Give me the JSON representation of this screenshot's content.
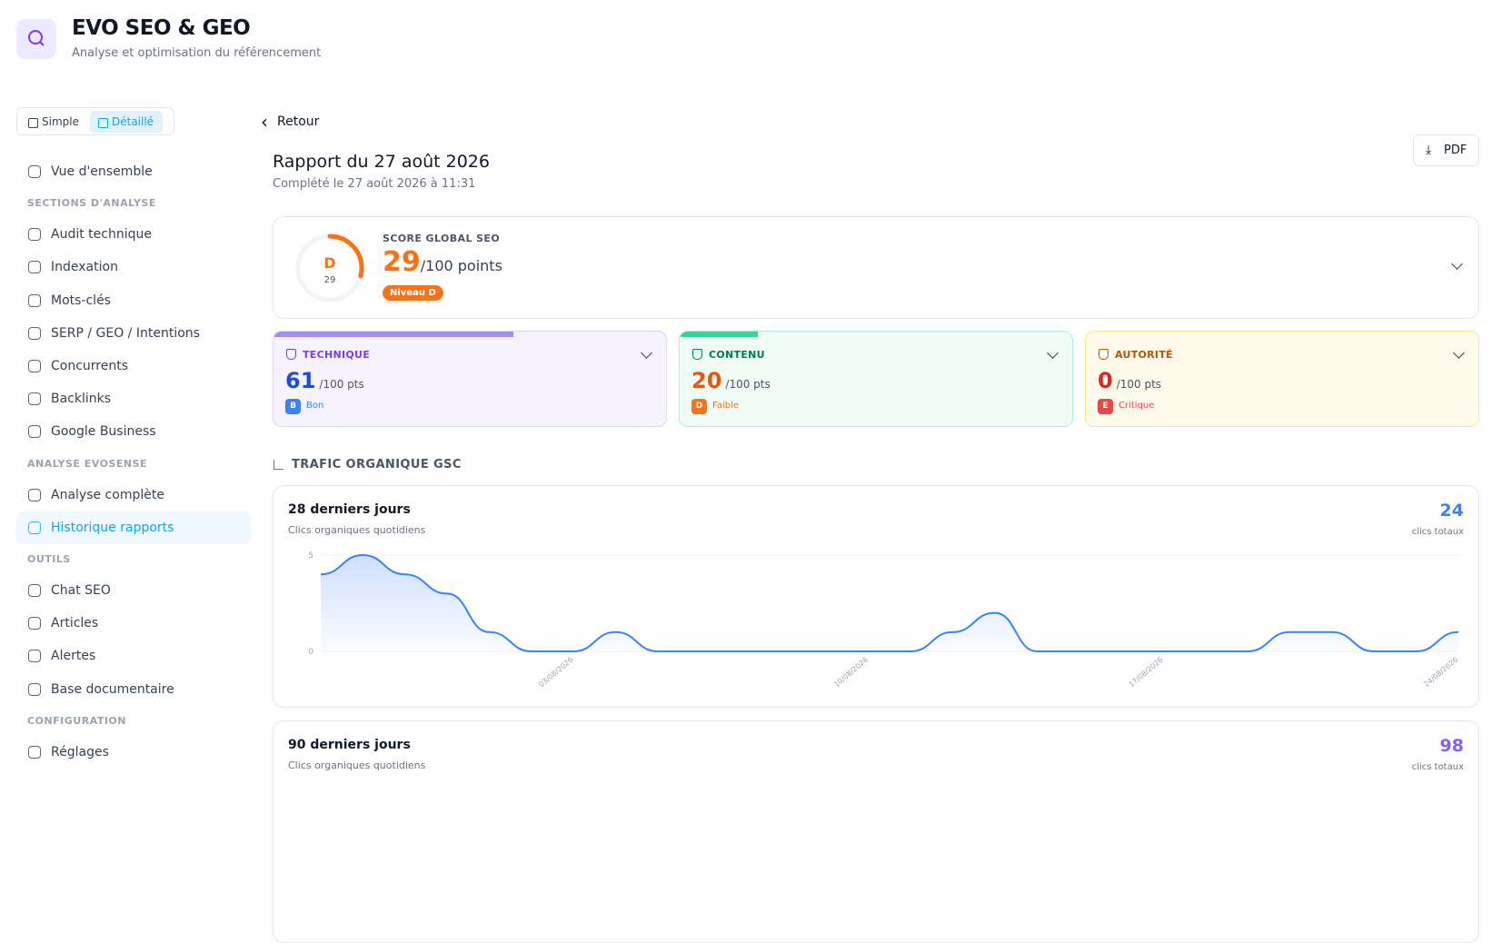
{
  "header": {
    "title": "EVO SEO & GEO",
    "subtitle": "Analyse et optimisation du référencement"
  },
  "view_modes": [
    {
      "label": "Simple"
    },
    {
      "label": "Détaillé",
      "active": true
    }
  ],
  "nav": [
    {
      "items": [
        {
          "label": "Vue d'ensemble"
        }
      ]
    },
    {
      "label": "SECTIONS D'ANALYSE",
      "items": [
        {
          "label": "Audit technique"
        },
        {
          "label": "Indexation"
        },
        {
          "label": "Mots-clés"
        },
        {
          "label": "SERP / GEO / Intentions"
        },
        {
          "label": "Concurrents"
        },
        {
          "label": "Backlinks"
        },
        {
          "label": "Google Business"
        }
      ]
    },
    {
      "label": "ANALYSE EVOSENSE",
      "items": [
        {
          "label": "Analyse complète"
        },
        {
          "label": "Historique rapports",
          "active": true
        }
      ]
    },
    {
      "label": "OUTILS",
      "items": [
        {
          "label": "Chat SEO"
        },
        {
          "label": "Articles"
        },
        {
          "label": "Alertes"
        },
        {
          "label": "Base documentaire"
        }
      ]
    },
    {
      "label": "CONFIGURATION",
      "items": [
        {
          "label": "Réglages"
        }
      ]
    }
  ],
  "report": {
    "back": "Retour",
    "title": "Rapport du 27 août 2026",
    "subtitle": "Complété le 27 août 2026 à 11:31",
    "pdf": "PDF"
  },
  "score": {
    "label": "SCORE GLOBAL SEO",
    "grade": "D",
    "value": 29,
    "suffix": "/100 points",
    "badge": "Niveau D",
    "color": "#f97316"
  },
  "categories": [
    {
      "name": "TECHNIQUE",
      "value": 61,
      "suffix": "/100 pts",
      "grade": "B",
      "status": "Bon",
      "color": "#7c3aed",
      "value_color": "#1d4ed8",
      "grade_color": "#3b82f6",
      "bg": "#f6f3ff",
      "border": "#ddd6fe",
      "bar": "#a78bfa"
    },
    {
      "name": "CONTENU",
      "value": 20,
      "suffix": "/100 pts",
      "grade": "D",
      "status": "Faible",
      "color": "#047857",
      "value_color": "#ea580c",
      "grade_color": "#f97316",
      "bg": "#effdf6",
      "border": "#a7f3d0",
      "bar": "#34d399"
    },
    {
      "name": "AUTORITÉ",
      "value": 0,
      "suffix": "/100 pts",
      "grade": "E",
      "status": "Critique",
      "color": "#b45309",
      "value_color": "#dc2626",
      "grade_color": "#ef4444",
      "bg": "#fffbea",
      "border": "#fde68a",
      "bar": "#fbbf24"
    }
  ],
  "traffic": {
    "title": "TRAFIC ORGANIQUE GSC",
    "cards": [
      {
        "title": "28 derniers jours",
        "subtitle": "Clics organiques quotidiens",
        "total": 24,
        "total_label": "clics totaux",
        "total_color": "#3b82f6",
        "chart": {
          "type": "line",
          "color": "#3b82f6",
          "categories": [
            null,
            null,
            null,
            null,
            null,
            null,
            "03/08/2026",
            null,
            null,
            null,
            null,
            null,
            null,
            "10/08/2026",
            null,
            null,
            null,
            null,
            null,
            null,
            "17/08/2026",
            null,
            null,
            null,
            null,
            null,
            null,
            "24/08/2026"
          ],
          "values": [
            4,
            5,
            4,
            3,
            1,
            0,
            0,
            1,
            0,
            0,
            0,
            0,
            0,
            0,
            0,
            1,
            2,
            0,
            0,
            0,
            0,
            0,
            0,
            1,
            1,
            0,
            0,
            1
          ],
          "ylim": [
            0,
            5
          ],
          "yticks": [
            0,
            5
          ],
          "grid": true
        }
      },
      {
        "title": "90 derniers jours",
        "subtitle": "Clics organiques quotidiens",
        "total": 98,
        "total_label": "clics totaux",
        "total_color": "#8b5cf6"
      }
    ]
  }
}
